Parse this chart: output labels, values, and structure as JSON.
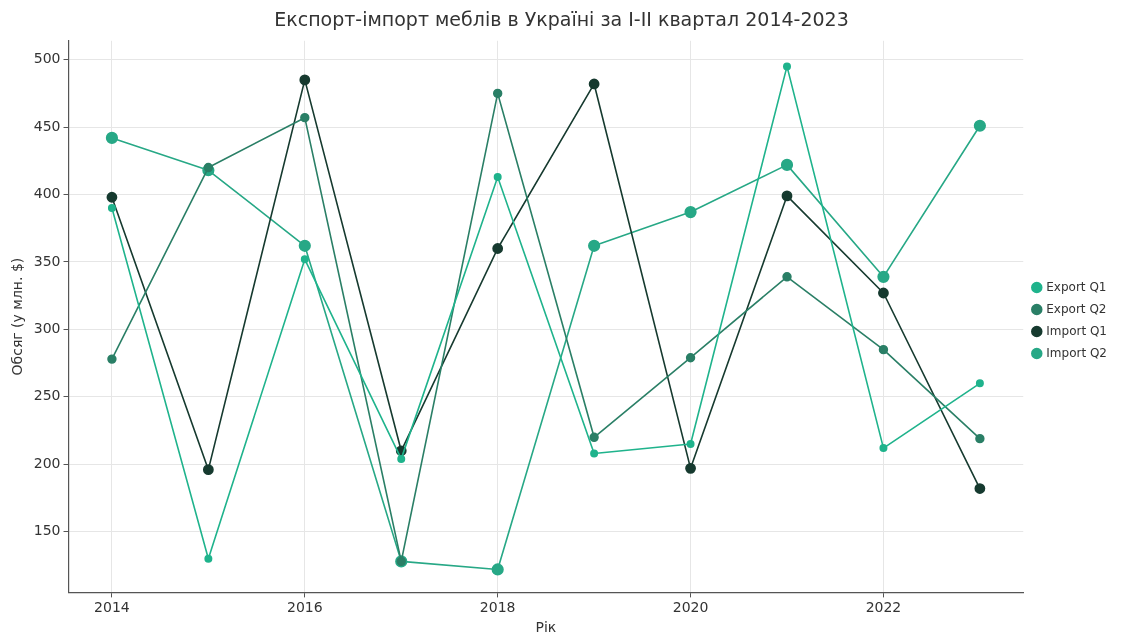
{
  "chart_data": {
    "type": "line",
    "title": "Експорт-імпорт меблів в Україні за I-II квартал 2014-2023",
    "xlabel": "Рік",
    "ylabel": "Обсяг (у млн. $)",
    "x": [
      2014,
      2015,
      2016,
      2017,
      2018,
      2019,
      2020,
      2021,
      2022,
      2023
    ],
    "series": [
      {
        "name": "Export Q1",
        "color": "#1fb38c",
        "values": [
          390,
          130,
          352,
          204,
          413,
          208,
          215,
          495,
          212,
          260
        ]
      },
      {
        "name": "Export Q2",
        "color": "#2a7f66",
        "values": [
          278,
          420,
          457,
          128,
          475,
          220,
          279,
          339,
          285,
          219
        ]
      },
      {
        "name": "Import Q1",
        "color": "#163a2f",
        "values": [
          398,
          196,
          485,
          210,
          360,
          482,
          197,
          399,
          327,
          182
        ]
      },
      {
        "name": "Import Q2",
        "color": "#27a886",
        "values": [
          442,
          418,
          362,
          128,
          122,
          362,
          387,
          422,
          339,
          451
        ]
      }
    ],
    "xlim": [
      2013.55,
      2023.45
    ],
    "xticks": [
      2014,
      2016,
      2018,
      2020,
      2022
    ],
    "ylim": [
      105,
      514
    ],
    "yticks": [
      150,
      200,
      250,
      300,
      350,
      400,
      450,
      500
    ],
    "grid": true,
    "legend": "right",
    "marker": "circle",
    "line_style": "solid"
  }
}
